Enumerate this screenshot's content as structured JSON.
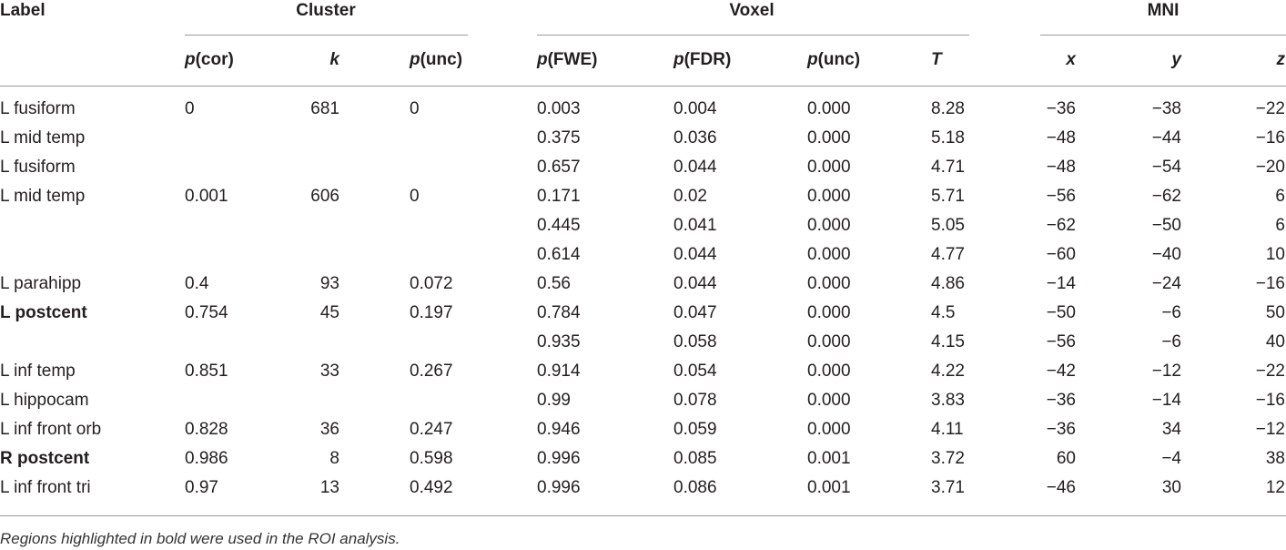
{
  "header": {
    "groups": [
      "Label",
      "Cluster",
      "Voxel",
      "MNI"
    ],
    "columns": [
      {
        "symbol": "p",
        "qualifier": "(cor)"
      },
      {
        "symbol": "k"
      },
      {
        "symbol": "p",
        "qualifier": "(unc)"
      },
      {
        "symbol": "p",
        "qualifier": "(FWE)"
      },
      {
        "symbol": "p",
        "qualifier": "(FDR)"
      },
      {
        "symbol": "p",
        "qualifier": "(unc)"
      },
      {
        "symbol": "T"
      },
      {
        "symbol": "x"
      },
      {
        "symbol": "y"
      },
      {
        "symbol": "z"
      }
    ]
  },
  "table": {
    "rows": [
      {
        "label": "L fusiform",
        "cells": [
          "0",
          "681",
          "0",
          "0.003",
          "0.004",
          "0.000",
          "8.28",
          "−36",
          "−38",
          "−22"
        ]
      },
      {
        "label": "L mid temp",
        "cells": [
          null,
          null,
          null,
          "0.375",
          "0.036",
          "0.000",
          "5.18",
          "−48",
          "−44",
          "−16"
        ]
      },
      {
        "label": "L fusiform",
        "cells": [
          null,
          null,
          null,
          "0.657",
          "0.044",
          "0.000",
          "4.71",
          "−48",
          "−54",
          "−20"
        ]
      },
      {
        "label": "L mid temp",
        "cells": [
          "0.001",
          "606",
          "0",
          "0.171",
          "0.02",
          "0.000",
          "5.71",
          "−56",
          "−62",
          "6"
        ]
      },
      {
        "label": null,
        "cells": [
          null,
          null,
          null,
          "0.445",
          "0.041",
          "0.000",
          "5.05",
          "−62",
          "−50",
          "6"
        ]
      },
      {
        "label": null,
        "cells": [
          null,
          null,
          null,
          "0.614",
          "0.044",
          "0.000",
          "4.77",
          "−60",
          "−40",
          "10"
        ]
      },
      {
        "label": "L parahipp",
        "cells": [
          "0.4",
          "93",
          "0.072",
          "0.56",
          "0.044",
          "0.000",
          "4.86",
          "−14",
          "−24",
          "−16"
        ]
      },
      {
        "label": "L postcent",
        "bold": true,
        "cells": [
          "0.754",
          "45",
          "0.197",
          "0.784",
          "0.047",
          "0.000",
          "4.5",
          "−50",
          "−6",
          "50"
        ]
      },
      {
        "label": null,
        "cells": [
          null,
          null,
          null,
          "0.935",
          "0.058",
          "0.000",
          "4.15",
          "−56",
          "−6",
          "40"
        ]
      },
      {
        "label": "L inf temp",
        "cells": [
          "0.851",
          "33",
          "0.267",
          "0.914",
          "0.054",
          "0.000",
          "4.22",
          "−42",
          "−12",
          "−22"
        ]
      },
      {
        "label": "L hippocam",
        "cells": [
          null,
          null,
          null,
          "0.99",
          "0.078",
          "0.000",
          "3.83",
          "−36",
          "−14",
          "−16"
        ]
      },
      {
        "label": "L inf front orb",
        "cells": [
          "0.828",
          "36",
          "0.247",
          "0.946",
          "0.059",
          "0.000",
          "4.11",
          "−36",
          "34",
          "−12"
        ]
      },
      {
        "label": "R postcent",
        "bold": true,
        "cells": [
          "0.986",
          "8",
          "0.598",
          "0.996",
          "0.085",
          "0.001",
          "3.72",
          "60",
          "−4",
          "38"
        ]
      },
      {
        "label": "L inf front tri",
        "cells": [
          "0.97",
          "13",
          "0.492",
          "0.996",
          "0.086",
          "0.001",
          "3.71",
          "−46",
          "30",
          "12"
        ]
      }
    ]
  },
  "footnote": "Regions highlighted in bold were used in the ROI analysis."
}
